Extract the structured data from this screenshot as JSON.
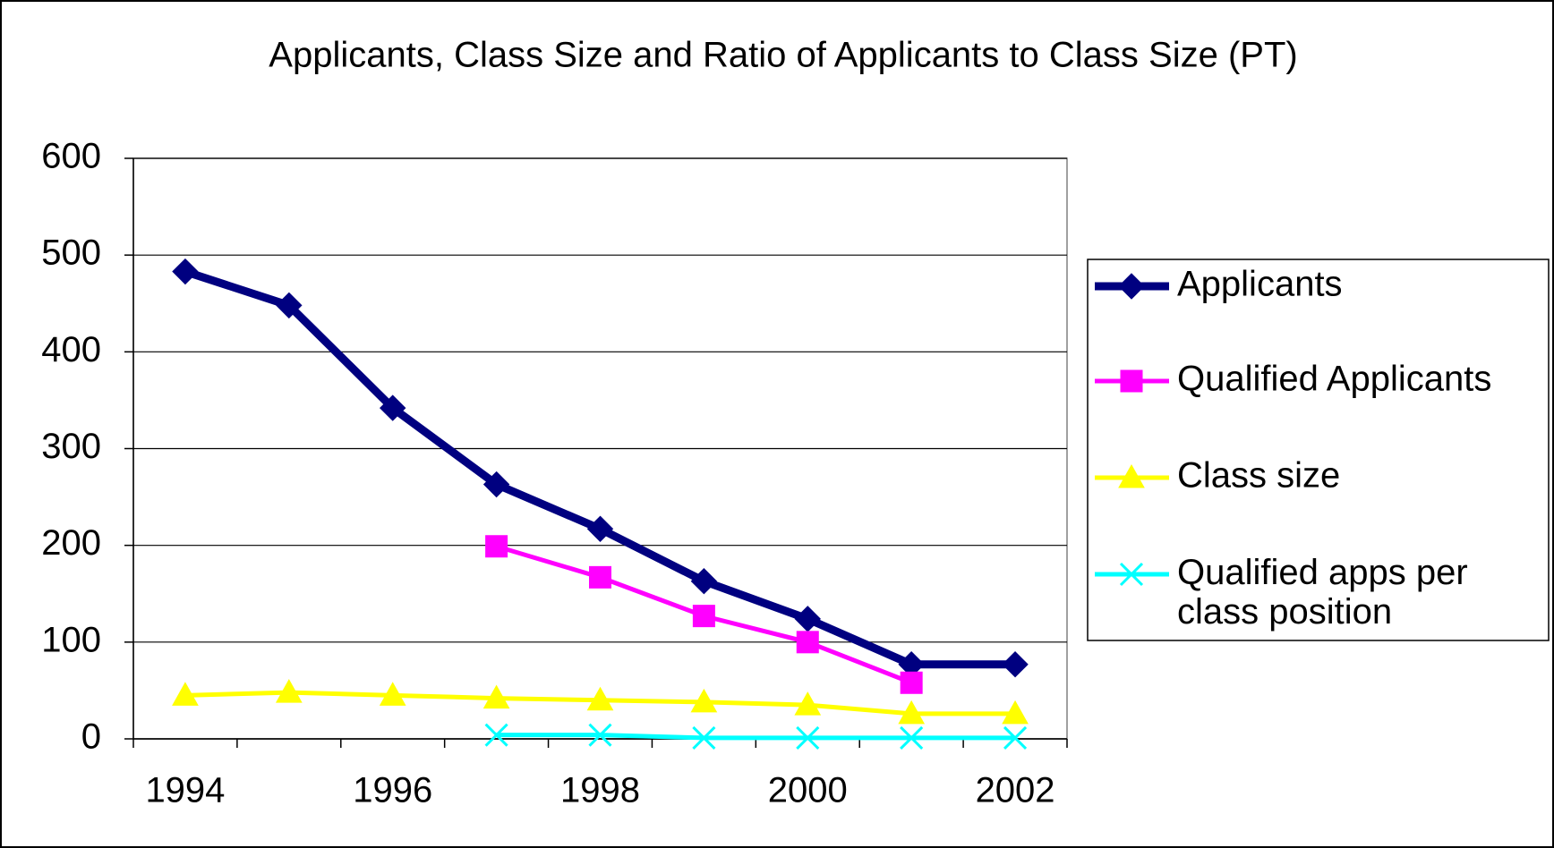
{
  "chart_data": {
    "type": "line",
    "title": "Applicants, Class Size and Ratio of Applicants to Class Size (PT)",
    "categories": [
      1994,
      null,
      1996,
      null,
      1998,
      null,
      2000,
      null,
      2002
    ],
    "series": [
      {
        "name": "Applicants",
        "color": "#000080",
        "marker": "diamond",
        "values": [
          483,
          448,
          342,
          263,
          217,
          163,
          124,
          77,
          77
        ]
      },
      {
        "name": "Qualified Applicants",
        "color": "#ff00ff",
        "marker": "square",
        "values": [
          null,
          null,
          null,
          199,
          167,
          127,
          100,
          58,
          null
        ]
      },
      {
        "name": "Class size",
        "color": "#ffff00",
        "marker": "triangle",
        "values": [
          45,
          48,
          45,
          42,
          40,
          38,
          35,
          26,
          26
        ]
      },
      {
        "name": "Qualified apps per class position",
        "color": "#00ffff",
        "marker": "x",
        "values": [
          null,
          null,
          null,
          4,
          4,
          1,
          1,
          1,
          1
        ]
      }
    ],
    "ylim": [
      0,
      600
    ],
    "yticks": [
      0,
      100,
      200,
      300,
      400,
      500,
      600
    ],
    "grid": true,
    "legend": "right"
  }
}
